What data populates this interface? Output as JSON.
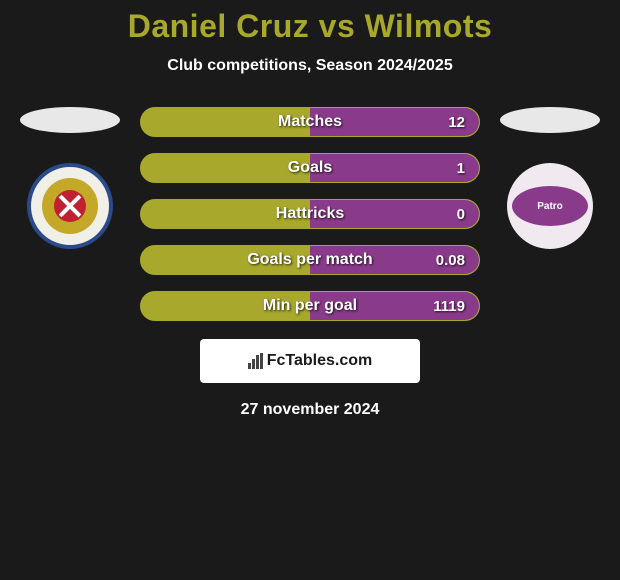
{
  "title": "Daniel Cruz vs Wilmots",
  "title_color": "#a8a82c",
  "subtitle": "Club competitions, Season 2024/2025",
  "background_color": "#1a1a1a",
  "player_left": {
    "placeholder_color": "#e8e8e8",
    "club_name": "Waasland-Beveren",
    "club_colors": {
      "outer": "#f0f0e8",
      "border": "#2a4a8a",
      "ring": "#c4a828",
      "core": "#c02030"
    }
  },
  "player_right": {
    "placeholder_color": "#e8e8e8",
    "club_name": "Patro",
    "club_colors": {
      "outer": "#f0eaf0",
      "inner": "#8a3a8a"
    }
  },
  "stats": [
    {
      "label": "Matches",
      "left_value": null,
      "right_value": "12",
      "left_pct": 50,
      "right_pct": 50
    },
    {
      "label": "Goals",
      "left_value": null,
      "right_value": "1",
      "left_pct": 50,
      "right_pct": 50
    },
    {
      "label": "Hattricks",
      "left_value": null,
      "right_value": "0",
      "left_pct": 50,
      "right_pct": 50
    },
    {
      "label": "Goals per match",
      "left_value": null,
      "right_value": "0.08",
      "left_pct": 50,
      "right_pct": 50
    },
    {
      "label": "Min per goal",
      "left_value": null,
      "right_value": "1119",
      "left_pct": 50,
      "right_pct": 50
    }
  ],
  "stat_style": {
    "left_color": "#a8a82c",
    "right_color": "#8a3a8a",
    "border_color": "#a8a82c",
    "height": 30,
    "label_fontsize": 16,
    "value_fontsize": 15,
    "text_shadow": "1px 1px 2px rgba(0,0,0,0.8)"
  },
  "brand": {
    "text": "FcTables.com",
    "background": "#ffffff",
    "text_color": "#1a1a1a"
  },
  "footer_date": "27 november 2024"
}
